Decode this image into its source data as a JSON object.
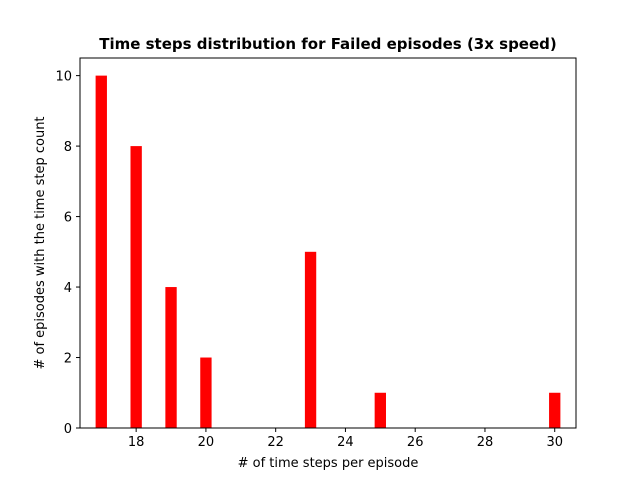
{
  "chart_data": {
    "type": "bar",
    "title": "Time steps distribution for Failed episodes (3x speed)",
    "xlabel": "# of time steps per episode",
    "ylabel": "# of episodes with the time step count",
    "x": [
      17,
      18,
      19,
      20,
      23,
      25,
      30
    ],
    "values": [
      10,
      8,
      4,
      2,
      5,
      1,
      1
    ],
    "bar_width": 0.325,
    "xlim": [
      16.39,
      30.61
    ],
    "ylim": [
      0,
      10.5
    ],
    "xticks": [
      18,
      20,
      22,
      24,
      26,
      28,
      30
    ],
    "yticks": [
      0,
      2,
      4,
      6,
      8,
      10
    ],
    "bar_color": "#ff0000",
    "grid": false
  }
}
